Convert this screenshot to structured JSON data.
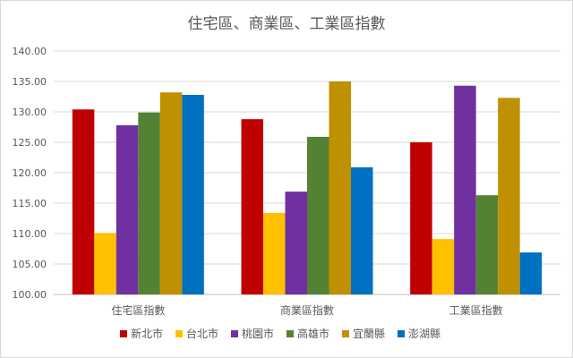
{
  "chart_data": {
    "type": "bar",
    "title": "住宅區、商業區、工業區指數",
    "xlabel": "",
    "ylabel": "",
    "categories": [
      "住宅區指數",
      "商業區指數",
      "工業區指數"
    ],
    "ylim": [
      100,
      140
    ],
    "yticks": [
      "100.00",
      "105.00",
      "110.00",
      "115.00",
      "120.00",
      "125.00",
      "130.00",
      "135.00",
      "140.00"
    ],
    "grid": true,
    "legend_position": "bottom",
    "series": [
      {
        "name": "新北市",
        "color": "#c00000",
        "values": [
          130.4,
          128.8,
          125.0
        ]
      },
      {
        "name": "台北市",
        "color": "#ffc000",
        "values": [
          110.1,
          113.4,
          109.1
        ]
      },
      {
        "name": "桃園市",
        "color": "#7030a0",
        "values": [
          127.8,
          116.9,
          134.3
        ]
      },
      {
        "name": "高雄市",
        "color": "#548235",
        "values": [
          129.9,
          125.9,
          116.3
        ]
      },
      {
        "name": "宜蘭縣",
        "color": "#bf9000",
        "values": [
          133.2,
          135.0,
          132.3
        ]
      },
      {
        "name": "澎湖縣",
        "color": "#0070c0",
        "values": [
          132.8,
          120.9,
          106.9
        ]
      }
    ]
  }
}
